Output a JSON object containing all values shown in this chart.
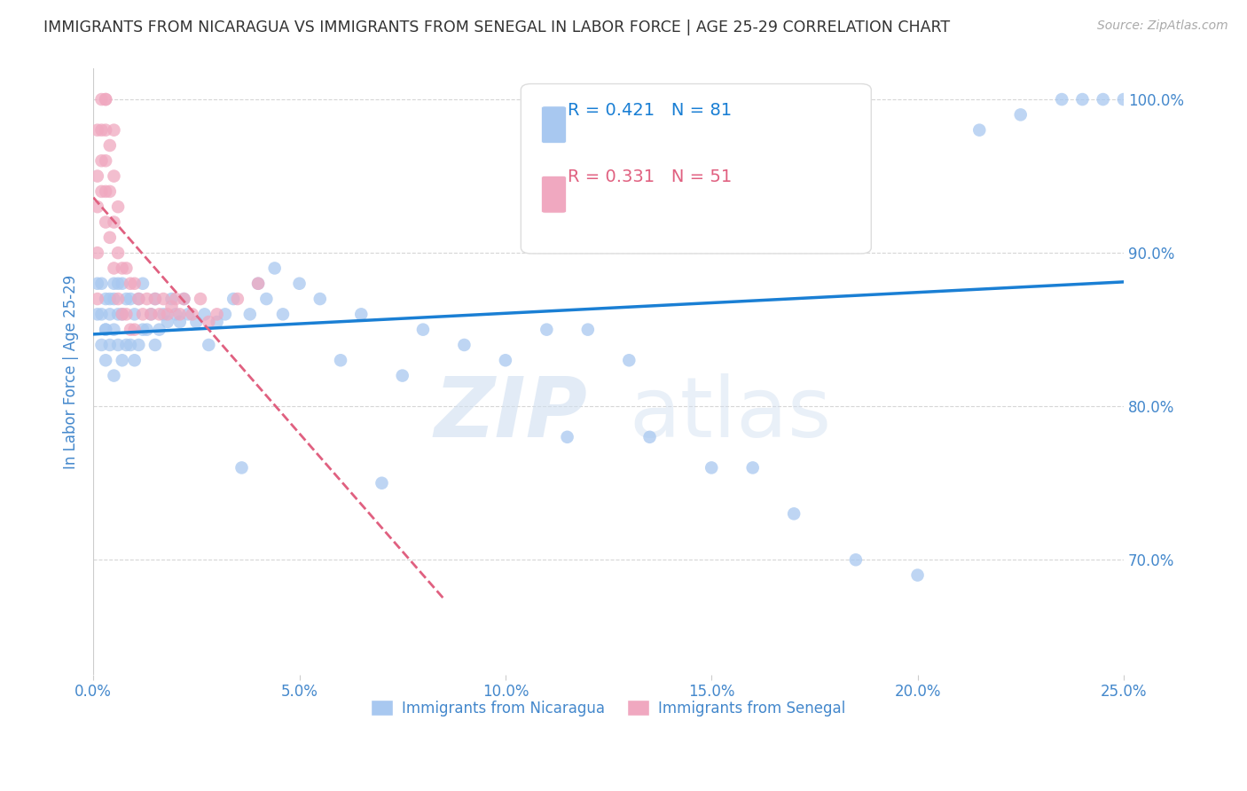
{
  "title": "IMMIGRANTS FROM NICARAGUA VS IMMIGRANTS FROM SENEGAL IN LABOR FORCE | AGE 25-29 CORRELATION CHART",
  "source": "Source: ZipAtlas.com",
  "ylabel": "In Labor Force | Age 25-29",
  "xlim": [
    0.0,
    0.25
  ],
  "ylim": [
    0.625,
    1.02
  ],
  "yticks": [
    0.7,
    0.8,
    0.9,
    1.0
  ],
  "ytick_labels": [
    "70.0%",
    "80.0%",
    "90.0%",
    "100.0%"
  ],
  "xticks": [
    0.0,
    0.05,
    0.1,
    0.15,
    0.2,
    0.25
  ],
  "xtick_labels": [
    "0.0%",
    "5.0%",
    "10.0%",
    "15.0%",
    "20.0%",
    "25.0%"
  ],
  "nicaragua_color": "#a8c8f0",
  "senegal_color": "#f0a8c0",
  "nicaragua_line_color": "#1a7fd4",
  "senegal_line_color": "#e06080",
  "R_nicaragua": 0.421,
  "N_nicaragua": 81,
  "R_senegal": 0.331,
  "N_senegal": 51,
  "legend_labels": [
    "Immigrants from Nicaragua",
    "Immigrants from Senegal"
  ],
  "watermark_zip": "ZIP",
  "watermark_atlas": "atlas",
  "background_color": "#ffffff",
  "grid_color": "#cccccc",
  "axis_label_color": "#4488cc",
  "title_color": "#333333",
  "nicaragua_x": [
    0.001,
    0.001,
    0.002,
    0.002,
    0.002,
    0.003,
    0.003,
    0.003,
    0.003,
    0.004,
    0.004,
    0.004,
    0.005,
    0.005,
    0.005,
    0.005,
    0.006,
    0.006,
    0.006,
    0.007,
    0.007,
    0.007,
    0.008,
    0.008,
    0.009,
    0.009,
    0.01,
    0.01,
    0.011,
    0.011,
    0.012,
    0.012,
    0.013,
    0.014,
    0.015,
    0.015,
    0.016,
    0.017,
    0.018,
    0.019,
    0.02,
    0.021,
    0.022,
    0.023,
    0.025,
    0.027,
    0.028,
    0.03,
    0.032,
    0.034,
    0.036,
    0.038,
    0.04,
    0.042,
    0.044,
    0.046,
    0.05,
    0.055,
    0.06,
    0.065,
    0.07,
    0.075,
    0.08,
    0.09,
    0.1,
    0.11,
    0.115,
    0.12,
    0.13,
    0.135,
    0.15,
    0.16,
    0.17,
    0.185,
    0.2,
    0.215,
    0.225,
    0.235,
    0.24,
    0.245,
    0.25
  ],
  "nicaragua_y": [
    0.86,
    0.88,
    0.84,
    0.86,
    0.88,
    0.83,
    0.85,
    0.87,
    0.85,
    0.84,
    0.86,
    0.87,
    0.82,
    0.85,
    0.87,
    0.88,
    0.84,
    0.86,
    0.88,
    0.83,
    0.86,
    0.88,
    0.84,
    0.87,
    0.84,
    0.87,
    0.83,
    0.86,
    0.84,
    0.87,
    0.85,
    0.88,
    0.85,
    0.86,
    0.84,
    0.87,
    0.85,
    0.86,
    0.855,
    0.87,
    0.86,
    0.855,
    0.87,
    0.86,
    0.855,
    0.86,
    0.84,
    0.855,
    0.86,
    0.87,
    0.76,
    0.86,
    0.88,
    0.87,
    0.89,
    0.86,
    0.88,
    0.87,
    0.83,
    0.86,
    0.75,
    0.82,
    0.85,
    0.84,
    0.83,
    0.85,
    0.78,
    0.85,
    0.83,
    0.78,
    0.76,
    0.76,
    0.73,
    0.7,
    0.69,
    0.98,
    0.99,
    1.0,
    1.0,
    1.0,
    1.0
  ],
  "senegal_x": [
    0.001,
    0.001,
    0.001,
    0.001,
    0.001,
    0.002,
    0.002,
    0.002,
    0.002,
    0.003,
    0.003,
    0.003,
    0.003,
    0.003,
    0.003,
    0.004,
    0.004,
    0.004,
    0.005,
    0.005,
    0.005,
    0.005,
    0.006,
    0.006,
    0.006,
    0.007,
    0.007,
    0.008,
    0.008,
    0.009,
    0.009,
    0.01,
    0.01,
    0.011,
    0.012,
    0.013,
    0.014,
    0.015,
    0.016,
    0.017,
    0.018,
    0.019,
    0.02,
    0.021,
    0.022,
    0.024,
    0.026,
    0.028,
    0.03,
    0.035,
    0.04
  ],
  "senegal_y": [
    0.87,
    0.9,
    0.93,
    0.95,
    0.98,
    0.94,
    0.96,
    0.98,
    1.0,
    0.92,
    0.94,
    0.96,
    0.98,
    1.0,
    1.0,
    0.91,
    0.94,
    0.97,
    0.89,
    0.92,
    0.95,
    0.98,
    0.87,
    0.9,
    0.93,
    0.86,
    0.89,
    0.86,
    0.89,
    0.85,
    0.88,
    0.85,
    0.88,
    0.87,
    0.86,
    0.87,
    0.86,
    0.87,
    0.86,
    0.87,
    0.86,
    0.865,
    0.87,
    0.86,
    0.87,
    0.86,
    0.87,
    0.855,
    0.86,
    0.87,
    0.88
  ],
  "senegal_trendline_x": [
    0.0,
    0.085
  ],
  "nicaragua_trendline_x": [
    0.0,
    0.25
  ]
}
